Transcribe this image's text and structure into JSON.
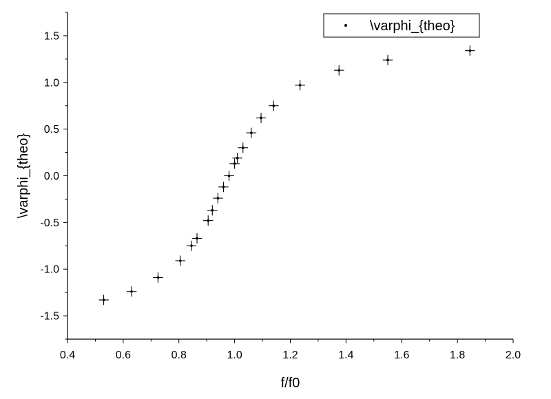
{
  "chart_data": {
    "type": "scatter",
    "title": "",
    "xlabel": "f/f0",
    "ylabel": "\\varphi_{theo}",
    "xlim": [
      0.4,
      2.0
    ],
    "ylim": [
      -1.75,
      1.75
    ],
    "xticks": [
      0.4,
      0.6,
      0.8,
      1.0,
      1.2,
      1.4,
      1.6,
      1.8,
      2.0
    ],
    "xtick_labels": [
      "0.4",
      "0.6",
      "0.8",
      "1.0",
      "1.2",
      "1.4",
      "1.6",
      "1.8",
      "2.0"
    ],
    "yticks": [
      -1.5,
      -1.0,
      -0.5,
      0.0,
      0.5,
      1.0,
      1.5
    ],
    "ytick_labels": [
      "-1.5",
      "-1.0",
      "-0.5",
      "0.0",
      "0.5",
      "1.0",
      "1.5"
    ],
    "grid": false,
    "legend": {
      "position": "top-right",
      "entries": [
        "\\varphi_{theo}"
      ]
    },
    "series": [
      {
        "name": "\\varphi_{theo}",
        "marker": "dot",
        "error_bars": {
          "x": 0.018,
          "y": 0.055
        },
        "points": [
          {
            "x": 0.53,
            "y": -1.33
          },
          {
            "x": 0.63,
            "y": -1.24
          },
          {
            "x": 0.725,
            "y": -1.09
          },
          {
            "x": 0.805,
            "y": -0.91
          },
          {
            "x": 0.845,
            "y": -0.75
          },
          {
            "x": 0.865,
            "y": -0.67
          },
          {
            "x": 0.905,
            "y": -0.48
          },
          {
            "x": 0.92,
            "y": -0.37
          },
          {
            "x": 0.94,
            "y": -0.24
          },
          {
            "x": 0.96,
            "y": -0.12
          },
          {
            "x": 0.98,
            "y": 0.0
          },
          {
            "x": 1.0,
            "y": 0.13
          },
          {
            "x": 1.01,
            "y": 0.19
          },
          {
            "x": 1.03,
            "y": 0.3
          },
          {
            "x": 1.06,
            "y": 0.46
          },
          {
            "x": 1.095,
            "y": 0.62
          },
          {
            "x": 1.14,
            "y": 0.75
          },
          {
            "x": 1.235,
            "y": 0.97
          },
          {
            "x": 1.375,
            "y": 1.13
          },
          {
            "x": 1.55,
            "y": 1.24
          },
          {
            "x": 1.845,
            "y": 1.34
          }
        ]
      }
    ]
  }
}
